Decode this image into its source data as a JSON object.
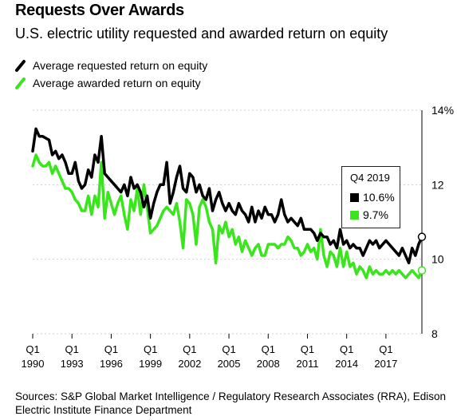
{
  "header": {
    "title": "Requests Over Awards",
    "subtitle": "U.S. electric utility requested and awarded return on equity"
  },
  "legend": [
    {
      "label": "Average requested return on equity",
      "color": "#000000"
    },
    {
      "label": "Average awarded return on equity",
      "color": "#39e61c"
    }
  ],
  "tooltip": {
    "title": "Q4 2019",
    "items": [
      {
        "label": "10.6%",
        "color": "#000000"
      },
      {
        "label": "9.7%",
        "color": "#39e61c"
      }
    ]
  },
  "footer": {
    "source": "Sources: S&P Global Market Intelligence / Regulatory Research Associates (RRA), Edison Electric Institute Finance Department"
  },
  "chart_data": {
    "type": "line",
    "ylim": [
      8,
      14
    ],
    "y_ticks": [
      "14%",
      "12",
      "10",
      "8"
    ],
    "y_tick_values": [
      14,
      12,
      10,
      8
    ],
    "x_ticks": [
      {
        "q": "Q1",
        "year": "1990",
        "t": 1990.0
      },
      {
        "q": "Q1",
        "year": "1993",
        "t": 1993.0
      },
      {
        "q": "Q1",
        "year": "1996",
        "t": 1996.0
      },
      {
        "q": "Q1",
        "year": "1999",
        "t": 1999.0
      },
      {
        "q": "Q1",
        "year": "2002",
        "t": 2002.0
      },
      {
        "q": "Q1",
        "year": "2005",
        "t": 2005.0
      },
      {
        "q": "Q1",
        "year": "2008",
        "t": 2008.0
      },
      {
        "q": "Q1",
        "year": "2011",
        "t": 2011.0
      },
      {
        "q": "Q1",
        "year": "2014",
        "t": 2014.0
      },
      {
        "q": "Q1",
        "year": "2017",
        "t": 2017.0
      }
    ],
    "xlim": [
      1990.0,
      2019.75
    ],
    "grid": true,
    "series": [
      {
        "name": "Average requested return on equity",
        "color": "#000000",
        "points": [
          [
            1990.0,
            12.9
          ],
          [
            1990.25,
            13.5
          ],
          [
            1990.5,
            13.3
          ],
          [
            1990.75,
            13.3
          ],
          [
            1991.0,
            13.25
          ],
          [
            1991.25,
            13.2
          ],
          [
            1991.5,
            12.8
          ],
          [
            1991.75,
            12.9
          ],
          [
            1992.0,
            12.7
          ],
          [
            1992.25,
            12.8
          ],
          [
            1992.5,
            12.6
          ],
          [
            1992.75,
            12.3
          ],
          [
            1993.0,
            12.3
          ],
          [
            1993.25,
            12.6
          ],
          [
            1993.5,
            12.1
          ],
          [
            1993.75,
            11.9
          ],
          [
            1994.0,
            12.0
          ],
          [
            1994.25,
            12.4
          ],
          [
            1994.5,
            12.2
          ],
          [
            1994.75,
            12.8
          ],
          [
            1995.0,
            12.6
          ],
          [
            1995.25,
            13.3
          ],
          [
            1995.5,
            12.3
          ],
          [
            1995.75,
            12.2
          ],
          [
            1996.0,
            12.1
          ],
          [
            1996.25,
            12.0
          ],
          [
            1996.5,
            11.9
          ],
          [
            1996.75,
            11.8
          ],
          [
            1997.0,
            12.0
          ],
          [
            1997.25,
            11.7
          ],
          [
            1997.5,
            12.2
          ],
          [
            1997.75,
            11.9
          ],
          [
            1998.0,
            12.0
          ],
          [
            1998.25,
            11.8
          ],
          [
            1998.5,
            11.4
          ],
          [
            1998.75,
            11.7
          ],
          [
            1999.0,
            11.1
          ],
          [
            1999.25,
            11.5
          ],
          [
            1999.5,
            11.8
          ],
          [
            1999.75,
            12.0
          ],
          [
            2000.0,
            12.0
          ],
          [
            2000.25,
            12.6
          ],
          [
            2000.5,
            11.5
          ],
          [
            2000.75,
            11.8
          ],
          [
            2001.0,
            12.2
          ],
          [
            2001.25,
            12.5
          ],
          [
            2001.5,
            11.9
          ],
          [
            2001.75,
            11.8
          ],
          [
            2002.0,
            12.3
          ],
          [
            2002.25,
            12.2
          ],
          [
            2002.5,
            11.8
          ],
          [
            2002.75,
            12.0
          ],
          [
            2003.0,
            11.7
          ],
          [
            2003.25,
            11.6
          ],
          [
            2003.5,
            11.9
          ],
          [
            2003.75,
            11.3
          ],
          [
            2004.0,
            11.6
          ],
          [
            2004.25,
            11.8
          ],
          [
            2004.5,
            11.5
          ],
          [
            2004.75,
            11.3
          ],
          [
            2005.0,
            11.5
          ],
          [
            2005.25,
            11.3
          ],
          [
            2005.5,
            11.2
          ],
          [
            2005.75,
            11.5
          ],
          [
            2006.0,
            11.3
          ],
          [
            2006.25,
            11.2
          ],
          [
            2006.5,
            11.0
          ],
          [
            2006.75,
            11.4
          ],
          [
            2007.0,
            11.0
          ],
          [
            2007.25,
            11.3
          ],
          [
            2007.5,
            11.1
          ],
          [
            2007.75,
            11.4
          ],
          [
            2008.0,
            11.2
          ],
          [
            2008.25,
            11.2
          ],
          [
            2008.5,
            11.0
          ],
          [
            2008.75,
            11.2
          ],
          [
            2009.0,
            11.6
          ],
          [
            2009.25,
            11.2
          ],
          [
            2009.5,
            11.0
          ],
          [
            2009.75,
            11.1
          ],
          [
            2010.0,
            11.0
          ],
          [
            2010.25,
            10.9
          ],
          [
            2010.5,
            11.1
          ],
          [
            2010.75,
            10.8
          ],
          [
            2011.0,
            10.8
          ],
          [
            2011.25,
            10.8
          ],
          [
            2011.5,
            10.7
          ],
          [
            2011.75,
            10.5
          ],
          [
            2012.0,
            10.7
          ],
          [
            2012.25,
            10.6
          ],
          [
            2012.5,
            10.6
          ],
          [
            2012.75,
            10.4
          ],
          [
            2013.0,
            10.5
          ],
          [
            2013.25,
            10.3
          ],
          [
            2013.5,
            10.8
          ],
          [
            2013.75,
            10.4
          ],
          [
            2014.0,
            10.5
          ],
          [
            2014.25,
            10.3
          ],
          [
            2014.5,
            10.4
          ],
          [
            2014.75,
            10.3
          ],
          [
            2015.0,
            10.3
          ],
          [
            2015.25,
            10.1
          ],
          [
            2015.5,
            10.3
          ],
          [
            2015.75,
            10.5
          ],
          [
            2016.0,
            10.4
          ],
          [
            2016.25,
            10.5
          ],
          [
            2016.5,
            10.3
          ],
          [
            2016.75,
            10.4
          ],
          [
            2017.0,
            10.5
          ],
          [
            2017.25,
            10.4
          ],
          [
            2017.5,
            10.3
          ],
          [
            2017.75,
            10.2
          ],
          [
            2018.0,
            10.1
          ],
          [
            2018.25,
            10.3
          ],
          [
            2018.5,
            10.1
          ],
          [
            2018.75,
            9.9
          ],
          [
            2019.0,
            10.3
          ],
          [
            2019.25,
            10.1
          ],
          [
            2019.5,
            10.4
          ],
          [
            2019.75,
            10.6
          ]
        ]
      },
      {
        "name": "Average awarded return on equity",
        "color": "#39e61c",
        "points": [
          [
            1990.0,
            12.5
          ],
          [
            1990.25,
            12.8
          ],
          [
            1990.5,
            12.6
          ],
          [
            1990.75,
            12.5
          ],
          [
            1991.0,
            12.5
          ],
          [
            1991.25,
            12.6
          ],
          [
            1991.5,
            12.3
          ],
          [
            1991.75,
            12.5
          ],
          [
            1992.0,
            12.3
          ],
          [
            1992.25,
            12.1
          ],
          [
            1992.5,
            11.9
          ],
          [
            1992.75,
            11.9
          ],
          [
            1993.0,
            11.8
          ],
          [
            1993.25,
            11.6
          ],
          [
            1993.5,
            11.5
          ],
          [
            1993.75,
            11.3
          ],
          [
            1994.0,
            11.3
          ],
          [
            1994.25,
            11.7
          ],
          [
            1994.5,
            11.2
          ],
          [
            1994.75,
            11.7
          ],
          [
            1995.0,
            11.4
          ],
          [
            1995.25,
            12.6
          ],
          [
            1995.5,
            11.1
          ],
          [
            1995.75,
            11.8
          ],
          [
            1996.0,
            11.5
          ],
          [
            1996.25,
            11.2
          ],
          [
            1996.5,
            11.5
          ],
          [
            1996.75,
            11.7
          ],
          [
            1997.0,
            11.2
          ],
          [
            1997.25,
            10.8
          ],
          [
            1997.5,
            11.6
          ],
          [
            1997.75,
            11.3
          ],
          [
            1998.0,
            11.9
          ],
          [
            1998.25,
            11.2
          ],
          [
            1998.5,
            12.0
          ],
          [
            1998.75,
            11.4
          ],
          [
            1999.0,
            10.7
          ],
          [
            1999.25,
            10.8
          ],
          [
            1999.5,
            10.9
          ],
          [
            1999.75,
            11.1
          ],
          [
            2000.0,
            11.3
          ],
          [
            2000.25,
            11.4
          ],
          [
            2000.5,
            11.3
          ],
          [
            2000.75,
            11.2
          ],
          [
            2001.0,
            11.5
          ],
          [
            2001.25,
            11.0
          ],
          [
            2001.5,
            10.3
          ],
          [
            2001.75,
            11.6
          ],
          [
            2002.0,
            11.5
          ],
          [
            2002.25,
            11.2
          ],
          [
            2002.5,
            10.4
          ],
          [
            2002.75,
            11.4
          ],
          [
            2003.0,
            11.6
          ],
          [
            2003.25,
            11.4
          ],
          [
            2003.5,
            11.0
          ],
          [
            2003.75,
            10.8
          ],
          [
            2004.0,
            9.9
          ],
          [
            2004.25,
            10.9
          ],
          [
            2004.5,
            10.7
          ],
          [
            2004.75,
            11.0
          ],
          [
            2005.0,
            10.6
          ],
          [
            2005.25,
            10.8
          ],
          [
            2005.5,
            10.4
          ],
          [
            2005.75,
            10.6
          ],
          [
            2006.0,
            10.2
          ],
          [
            2006.25,
            10.5
          ],
          [
            2006.5,
            10.3
          ],
          [
            2006.75,
            10.1
          ],
          [
            2007.0,
            10.3
          ],
          [
            2007.25,
            10.4
          ],
          [
            2007.5,
            10.1
          ],
          [
            2007.75,
            10.1
          ],
          [
            2008.0,
            10.4
          ],
          [
            2008.25,
            10.4
          ],
          [
            2008.5,
            10.4
          ],
          [
            2008.75,
            10.3
          ],
          [
            2009.0,
            10.4
          ],
          [
            2009.25,
            10.4
          ],
          [
            2009.5,
            10.6
          ],
          [
            2009.75,
            10.5
          ],
          [
            2010.0,
            10.3
          ],
          [
            2010.25,
            10.3
          ],
          [
            2010.5,
            10.1
          ],
          [
            2010.75,
            10.2
          ],
          [
            2011.0,
            10.4
          ],
          [
            2011.25,
            10.2
          ],
          [
            2011.5,
            10.3
          ],
          [
            2011.75,
            10.0
          ],
          [
            2012.0,
            10.8
          ],
          [
            2012.25,
            10.1
          ],
          [
            2012.5,
            9.8
          ],
          [
            2012.75,
            10.2
          ],
          [
            2013.0,
            10.1
          ],
          [
            2013.25,
            9.8
          ],
          [
            2013.5,
            10.3
          ],
          [
            2013.75,
            9.8
          ],
          [
            2014.0,
            10.2
          ],
          [
            2014.25,
            9.8
          ],
          [
            2014.5,
            9.9
          ],
          [
            2014.75,
            9.6
          ],
          [
            2015.0,
            9.8
          ],
          [
            2015.25,
            9.7
          ],
          [
            2015.5,
            9.5
          ],
          [
            2015.75,
            9.8
          ],
          [
            2016.0,
            9.6
          ],
          [
            2016.25,
            9.7
          ],
          [
            2016.5,
            9.6
          ],
          [
            2016.75,
            9.6
          ],
          [
            2017.0,
            9.7
          ],
          [
            2017.25,
            9.6
          ],
          [
            2017.5,
            9.7
          ],
          [
            2017.75,
            9.6
          ],
          [
            2018.0,
            9.7
          ],
          [
            2018.25,
            9.6
          ],
          [
            2018.5,
            9.5
          ],
          [
            2018.75,
            9.6
          ],
          [
            2019.0,
            9.7
          ],
          [
            2019.25,
            9.6
          ],
          [
            2019.5,
            9.5
          ],
          [
            2019.75,
            9.7
          ]
        ]
      }
    ]
  }
}
